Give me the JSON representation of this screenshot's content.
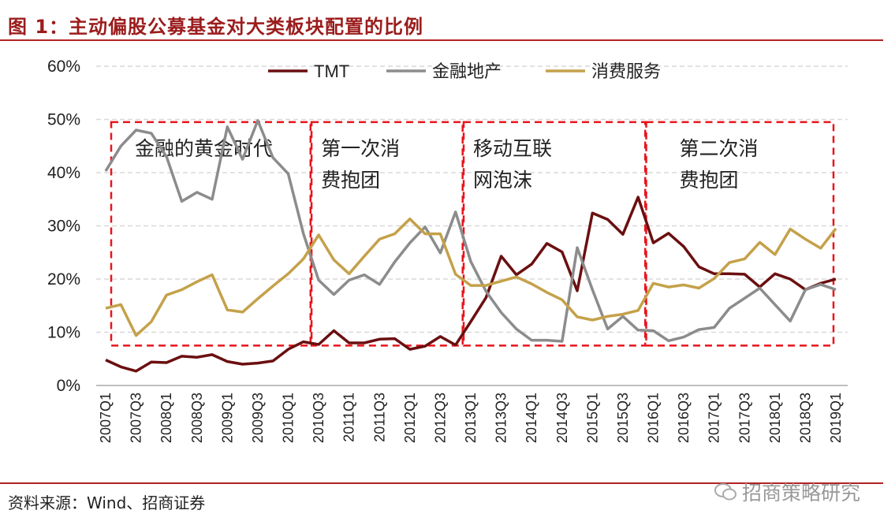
{
  "title": "图 1：主动偏股公募基金对大类板块配置的比例",
  "source": "资料来源：Wind、招商证券",
  "watermark": "招商策略研究",
  "chart_data": {
    "type": "line",
    "title": "图 1：主动偏股公募基金对大类板块配置的比例",
    "xlabel": "",
    "ylabel": "",
    "ylim": [
      0,
      60
    ],
    "yticks": [
      "0%",
      "10%",
      "20%",
      "30%",
      "40%",
      "50%",
      "60%"
    ],
    "grid": true,
    "legend_position": "top",
    "x": [
      "2007Q1",
      "2007Q2",
      "2007Q3",
      "2007Q4",
      "2008Q1",
      "2008Q2",
      "2008Q3",
      "2008Q4",
      "2009Q1",
      "2009Q2",
      "2009Q3",
      "2009Q4",
      "2010Q1",
      "2010Q2",
      "2010Q3",
      "2010Q4",
      "2011Q1",
      "2011Q2",
      "2011Q3",
      "2011Q4",
      "2012Q1",
      "2012Q2",
      "2012Q3",
      "2012Q4",
      "2013Q1",
      "2013Q2",
      "2013Q3",
      "2013Q4",
      "2014Q1",
      "2014Q2",
      "2014Q3",
      "2014Q4",
      "2015Q1",
      "2015Q2",
      "2015Q3",
      "2015Q4",
      "2016Q1",
      "2016Q2",
      "2016Q3",
      "2016Q4",
      "2017Q1",
      "2017Q2",
      "2017Q3",
      "2017Q4",
      "2018Q1",
      "2018Q2",
      "2018Q3",
      "2018Q4",
      "2019Q1"
    ],
    "xtick_labels": [
      "2007Q1",
      "2007Q3",
      "2008Q1",
      "2008Q3",
      "2009Q1",
      "2009Q3",
      "2010Q1",
      "2010Q3",
      "2011Q1",
      "2011Q3",
      "2012Q1",
      "2012Q3",
      "2013Q1",
      "2013Q3",
      "2014Q1",
      "2014Q3",
      "2015Q1",
      "2015Q3",
      "2016Q1",
      "2016Q3",
      "2017Q1",
      "2017Q3",
      "2018Q1",
      "2018Q3",
      "2019Q1"
    ],
    "series": [
      {
        "name": "TMT",
        "color": "#6b0f10",
        "values": [
          4.8,
          3.5,
          2.7,
          4.4,
          4.3,
          5.5,
          5.3,
          5.8,
          4.5,
          4.0,
          4.2,
          4.6,
          6.8,
          8.2,
          7.7,
          10.3,
          8.0,
          8.0,
          8.7,
          8.8,
          6.8,
          7.4,
          9.2,
          7.6,
          12.0,
          16.5,
          24.3,
          20.8,
          22.8,
          26.7,
          25.1,
          17.8,
          32.4,
          31.2,
          28.4,
          35.4,
          26.8,
          28.6,
          26.1,
          22.3,
          21.0,
          21.0,
          20.9,
          18.5,
          21.0,
          20.0,
          18.0,
          19.2,
          20.0
        ]
      },
      {
        "name": "金融地产",
        "color": "#8c8c8c",
        "values": [
          40.3,
          45.0,
          48.0,
          47.4,
          43.0,
          34.6,
          36.3,
          35.0,
          48.6,
          42.5,
          49.8,
          42.8,
          39.8,
          28.5,
          19.8,
          17.1,
          19.8,
          20.8,
          19.0,
          23.2,
          26.8,
          29.8,
          24.9,
          32.6,
          23.3,
          17.7,
          13.7,
          10.6,
          8.5,
          8.5,
          8.3,
          25.9,
          18.0,
          10.6,
          13.0,
          10.4,
          10.3,
          8.4,
          9.1,
          10.5,
          10.9,
          14.5,
          16.4,
          18.3,
          15.2,
          12.1,
          18.0,
          19.0,
          18.0
        ]
      },
      {
        "name": "消费服务",
        "color": "#c4a14a",
        "values": [
          14.5,
          15.2,
          9.4,
          12.0,
          17.0,
          18.0,
          19.5,
          20.8,
          14.2,
          13.8,
          16.3,
          18.7,
          21.0,
          23.8,
          28.3,
          23.6,
          21.0,
          24.3,
          27.5,
          28.5,
          31.3,
          28.5,
          28.5,
          20.9,
          18.8,
          18.8,
          19.6,
          20.4,
          19.1,
          17.5,
          16.1,
          12.9,
          12.3,
          13.0,
          13.4,
          14.1,
          19.2,
          18.5,
          18.9,
          18.3,
          20.1,
          23.1,
          23.8,
          26.9,
          24.6,
          29.4,
          27.5,
          25.8,
          29.5
        ]
      }
    ],
    "annotations": [
      {
        "lines": [
          "金融的黄金时代"
        ],
        "from": "2007Q1",
        "to": "2010Q2",
        "range_pct": [
          7.5,
          49.5
        ]
      },
      {
        "lines": [
          "第一次消",
          "费抱团"
        ],
        "from": "2010Q3",
        "to": "2012Q4",
        "range_pct": [
          7.5,
          49.5
        ]
      },
      {
        "lines": [
          "移动互联",
          "网泡沫"
        ],
        "from": "2013Q1",
        "to": "2015Q4",
        "range_pct": [
          7.5,
          49.5
        ]
      },
      {
        "lines": [
          "第二次消",
          "费抱团"
        ],
        "from": "2016Q1",
        "to": "2019Q1",
        "range_pct": [
          7.5,
          49.5
        ]
      }
    ],
    "annotation_color": "#e8141c"
  }
}
